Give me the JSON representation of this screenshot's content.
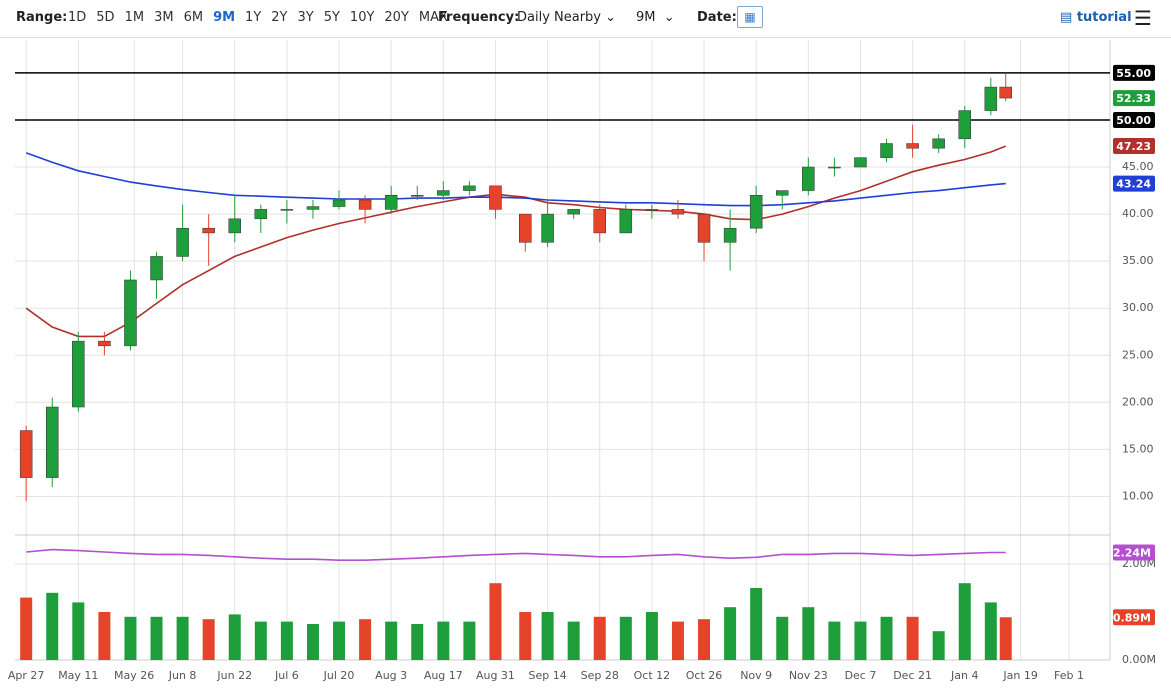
{
  "header": {
    "range_label": "Range:",
    "ranges": [
      "1D",
      "5D",
      "1M",
      "3M",
      "6M",
      "9M",
      "1Y",
      "2Y",
      "3Y",
      "5Y",
      "10Y",
      "20Y",
      "MAX"
    ],
    "active_range": 5,
    "frequency_label": "Frequency:",
    "frequency": "Daily Nearby",
    "period": "9M",
    "date_label": "Date:",
    "tutorial": "tutorial"
  },
  "chart_data": {
    "type": "candlestick",
    "x": [
      "Apr 27",
      "May 4",
      "May 11",
      "May 18",
      "May 25",
      "Jun 1",
      "Jun 8",
      "Jun 15",
      "Jun 22",
      "Jun 29",
      "Jul 6",
      "Jul 13",
      "Jul 20",
      "Jul 27",
      "Aug 3",
      "Aug 10",
      "Aug 17",
      "Aug 24",
      "Aug 31",
      "Sep 8",
      "Sep 14",
      "Sep 21",
      "Sep 28",
      "Oct 5",
      "Oct 12",
      "Oct 19",
      "Oct 26",
      "Nov 2",
      "Nov 9",
      "Nov 16",
      "Nov 23",
      "Nov 30",
      "Dec 7",
      "Dec 14",
      "Dec 21",
      "Dec 28",
      "Jan 4",
      "Jan 11",
      "Jan 15"
    ],
    "open": [
      17,
      12,
      19.5,
      26.5,
      26,
      33,
      35.5,
      38.5,
      38,
      39.5,
      40.5,
      40.5,
      40.8,
      41.5,
      40.5,
      42,
      42,
      42.5,
      43,
      40,
      37,
      40,
      40.5,
      38,
      40.5,
      40.5,
      40,
      37,
      38.5,
      42,
      42.5,
      45,
      45,
      46,
      47.5,
      47,
      48,
      51,
      53.5
    ],
    "high": [
      17.5,
      20.5,
      27.5,
      27.5,
      34,
      36,
      41,
      40,
      42,
      41,
      41.5,
      41.5,
      42.5,
      42,
      43,
      43,
      43.5,
      43.5,
      43,
      40,
      41.5,
      40.5,
      41,
      41,
      41,
      41.5,
      40,
      40.5,
      43,
      42.5,
      46,
      46,
      46,
      48,
      49.5,
      48.5,
      51.5,
      54.5,
      55
    ],
    "low": [
      9.5,
      11,
      19,
      25,
      25.5,
      31,
      35,
      34.5,
      37,
      38,
      39,
      39.5,
      40.5,
      39,
      40,
      41.5,
      41.5,
      42,
      39.5,
      36,
      36.5,
      39.5,
      37,
      38,
      39.5,
      39.5,
      35,
      34,
      38,
      40.5,
      42,
      44,
      45,
      45.5,
      46,
      46.5,
      47,
      50.5,
      52
    ],
    "close": [
      12,
      19.5,
      26.5,
      26,
      33,
      35.5,
      38.5,
      38,
      39.5,
      40.5,
      40.5,
      40.8,
      41.5,
      40.5,
      42,
      42,
      42.5,
      43,
      40.5,
      37,
      40,
      40.5,
      38,
      40.5,
      40.5,
      40,
      37,
      38.5,
      42,
      42.5,
      45,
      45,
      46,
      47.5,
      47,
      48,
      51,
      53.5,
      52.33
    ],
    "last_label": "52.33",
    "up_color": "#1e9e3a",
    "down_color": "#e5432a",
    "xlim": [
      "Apr 24",
      "Feb 12"
    ],
    "xticks": [
      "Apr 27",
      "May 11",
      "May 26",
      "Jun 8",
      "Jun 22",
      "Jul 6",
      "Jul 20",
      "Aug 3",
      "Aug 17",
      "Aug 31",
      "Sep 14",
      "Sep 28",
      "Oct 12",
      "Oct 26",
      "Nov 9",
      "Nov 23",
      "Dec 7",
      "Dec 21",
      "Jan 4",
      "Jan 19",
      "Feb 1"
    ],
    "ylim": [
      5.9,
      58.5
    ],
    "yticks": [
      {
        "value": 10,
        "label": "10.00"
      },
      {
        "value": 15,
        "label": "15.00"
      },
      {
        "value": 20,
        "label": "20.00"
      },
      {
        "value": 25,
        "label": "25.00"
      },
      {
        "value": 30,
        "label": "30.00"
      },
      {
        "value": 35,
        "label": "35.00"
      },
      {
        "value": 40,
        "label": "40.00"
      },
      {
        "value": 45,
        "label": "45.00"
      }
    ],
    "grid": true,
    "hlines": [
      {
        "value": 55,
        "label": "55.00"
      },
      {
        "value": 50,
        "label": "50.00"
      }
    ],
    "series": [
      {
        "color": "#b0302a",
        "values": [
          30,
          28,
          27,
          27,
          28.5,
          30.5,
          32.5,
          34,
          35.5,
          36.5,
          37.5,
          38.3,
          39,
          39.6,
          40.2,
          40.8,
          41.3,
          41.8,
          42.1,
          41.8,
          41.2,
          41,
          40.7,
          40.5,
          40.4,
          40.3,
          40,
          39.5,
          39.4,
          40,
          40.8,
          41.7,
          42.5,
          43.5,
          44.5,
          45.2,
          45.8,
          46.6,
          47.23
        ],
        "last_label": "47.23"
      },
      {
        "color": "#1f3fd6",
        "values": [
          46.5,
          45.5,
          44.6,
          44,
          43.4,
          43,
          42.6,
          42.3,
          42,
          41.9,
          41.8,
          41.7,
          41.6,
          41.6,
          41.6,
          41.7,
          41.7,
          41.8,
          41.8,
          41.7,
          41.5,
          41.4,
          41.3,
          41.2,
          41.2,
          41.1,
          41,
          40.9,
          40.9,
          41,
          41.2,
          41.4,
          41.7,
          42,
          42.3,
          42.5,
          42.8,
          43.1,
          43.24
        ],
        "last_label": "43.24"
      }
    ],
    "volume": {
      "values": [
        1.3,
        1.4,
        1.2,
        1.0,
        0.9,
        0.9,
        0.9,
        0.85,
        0.95,
        0.8,
        0.8,
        0.75,
        0.8,
        0.85,
        0.8,
        0.75,
        0.8,
        0.8,
        1.6,
        1.0,
        1.0,
        0.8,
        0.9,
        0.9,
        1.0,
        0.8,
        0.85,
        1.1,
        1.5,
        0.9,
        1.1,
        0.8,
        0.8,
        0.9,
        0.9,
        0.6,
        1.6,
        1.2,
        0.89
      ],
      "last_label": "0.89M",
      "ylim": [
        0,
        2.5
      ],
      "yticks": [
        {
          "value": 0,
          "label": "0.00M"
        },
        {
          "value": 2,
          "label": "2.00M"
        }
      ],
      "average": {
        "color": "#b44fd0",
        "values": [
          2.25,
          2.3,
          2.28,
          2.25,
          2.22,
          2.2,
          2.2,
          2.18,
          2.15,
          2.12,
          2.1,
          2.1,
          2.08,
          2.08,
          2.1,
          2.12,
          2.15,
          2.18,
          2.2,
          2.22,
          2.2,
          2.18,
          2.15,
          2.15,
          2.18,
          2.2,
          2.15,
          2.12,
          2.14,
          2.2,
          2.2,
          2.22,
          2.22,
          2.2,
          2.18,
          2.2,
          2.22,
          2.24,
          2.24
        ],
        "last_label": "2.24M"
      }
    }
  }
}
